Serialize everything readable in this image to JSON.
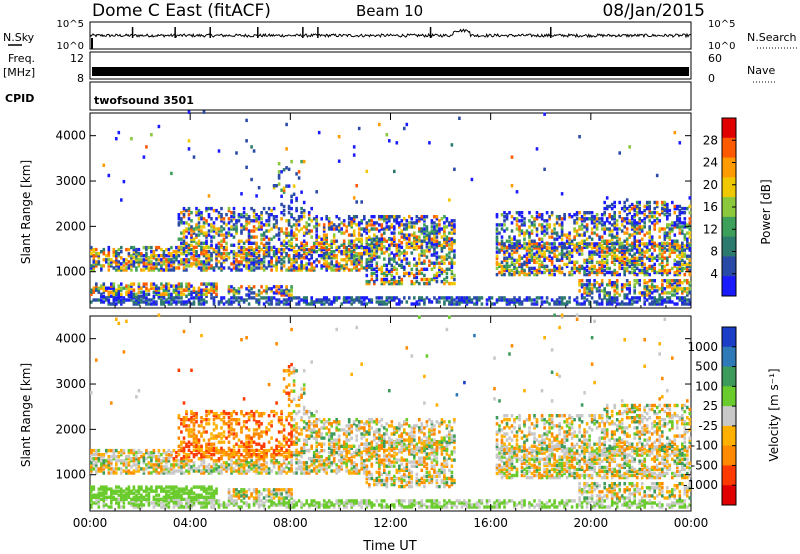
{
  "header": {
    "station": "Dome C East (fitACF)",
    "beam": "Beam 10",
    "date": "08/Jan/2015"
  },
  "top_panels": {
    "nsky_label": "N.Sky",
    "nsky_ticks": [
      "10^5",
      "10^0"
    ],
    "nsearch_label": "N.Search",
    "nsearch_ticks": [
      "10^5",
      "10^0"
    ],
    "freq_label": "Freq.",
    "freq_unit": "[MHz]",
    "freq_ticks": [
      "12",
      "8"
    ],
    "nave_label": "Nave",
    "nave_ticks": [
      "60",
      "0"
    ],
    "cpid_label": "CPID",
    "cpid_value": "twofsound 3501"
  },
  "chart_data": [
    {
      "type": "heatmap",
      "name": "power",
      "ylabel": "Slant Range [km]",
      "ylim": [
        200,
        4500
      ],
      "yticks": [
        "4000",
        "3000",
        "2000",
        "1000"
      ],
      "xlabel": "",
      "xticks": [
        "00:00",
        "04:00",
        "08:00",
        "12:00",
        "16:00",
        "20:00",
        "00:00"
      ],
      "colorbar_label": "Power [dB]",
      "colorbar_ticks": [
        "28",
        "24",
        "20",
        "16",
        "12",
        "8",
        "4"
      ],
      "colorbar_colors": [
        "#e00000",
        "#ff5a00",
        "#ff9a00",
        "#f0c800",
        "#8cc83c",
        "#3ca05a",
        "#2c7a6e",
        "#2a4aa8",
        "#1a1aff"
      ],
      "xrange_hours": [
        0,
        24
      ]
    },
    {
      "type": "heatmap",
      "name": "velocity",
      "ylabel": "Slant Range [km]",
      "ylim": [
        200,
        4500
      ],
      "yticks": [
        "4000",
        "3000",
        "2000",
        "1000"
      ],
      "xlabel": "Time UT",
      "xticks": [
        "00:00",
        "04:00",
        "08:00",
        "12:00",
        "16:00",
        "20:00",
        "00:00"
      ],
      "colorbar_label": "Velocity [m s⁻¹]",
      "colorbar_ticks": [
        "1000",
        "500",
        "100",
        "25",
        "-25",
        "-100",
        "-500",
        "-1000"
      ],
      "colorbar_colors": [
        "#1a3ec8",
        "#2e7ab8",
        "#3c9a5a",
        "#6acb2c",
        "#c8c8c8",
        "#ffb000",
        "#ff8a00",
        "#ff3a00",
        "#e00000"
      ],
      "xrange_hours": [
        0,
        24
      ]
    }
  ]
}
